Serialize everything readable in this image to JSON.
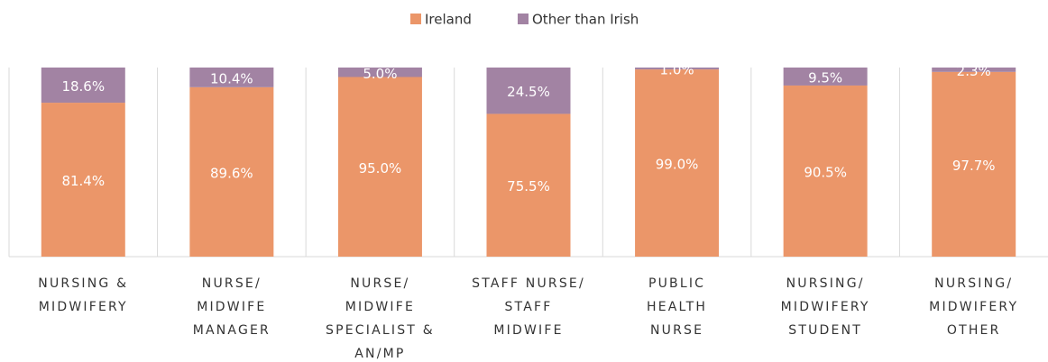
{
  "chart_data": {
    "type": "stacked_bar_100",
    "categories": [
      "NURSING &\nMIDWIFERY",
      "NURSE/\nMIDWIFE\nMANAGER",
      "NURSE/\nMIDWIFE\nSPECIALIST &\nAN/MP",
      "STAFF NURSE/\nSTAFF\nMIDWIFE",
      "PUBLIC\nHEALTH\nNURSE",
      "NURSING/\nMIDWIFERY\nSTUDENT",
      "NURSING/\nMIDWIFERY\nOTHER"
    ],
    "series": [
      {
        "name": "Ireland",
        "color": "#eb9669",
        "values": [
          81.4,
          89.6,
          95.0,
          75.5,
          99.0,
          90.5,
          97.7
        ],
        "value_labels": [
          "81.4%",
          "89.6%",
          "95.0%",
          "75.5%",
          "99.0%",
          "90.5%",
          "97.7%"
        ]
      },
      {
        "name": "Other than Irish",
        "color": "#a283a3",
        "values": [
          18.6,
          10.4,
          5.0,
          24.5,
          1.0,
          9.5,
          2.3
        ],
        "value_labels": [
          "18.6%",
          "10.4%",
          "5.0%",
          "24.5%",
          "1.0%",
          "9.5%",
          "2.3%"
        ]
      }
    ],
    "ylim": [
      0,
      100
    ],
    "legend": "top"
  }
}
